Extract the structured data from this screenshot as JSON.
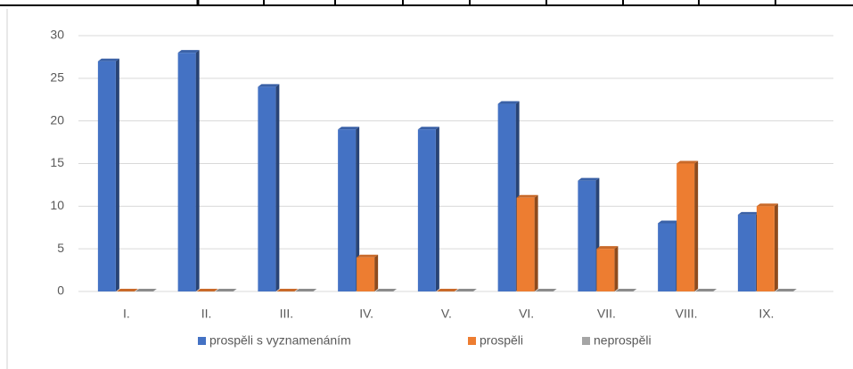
{
  "chart_data": {
    "type": "bar",
    "categories": [
      "I.",
      "II.",
      "III.",
      "IV.",
      "V.",
      "VI.",
      "VII.",
      "VIII.",
      "IX."
    ],
    "series": [
      {
        "name": "prospěli s vyznamenáním",
        "color": "#4472c4",
        "values": [
          27,
          28,
          24,
          19,
          19,
          22,
          13,
          8,
          9
        ]
      },
      {
        "name": "prospěli",
        "color": "#ed7d31",
        "values": [
          0,
          0,
          0,
          4,
          0,
          11,
          5,
          15,
          10
        ]
      },
      {
        "name": "neprospěli",
        "color": "#a5a5a5",
        "values": [
          0,
          0,
          0,
          0,
          0,
          0,
          0,
          0,
          0
        ]
      }
    ],
    "ylim": [
      0,
      30
    ],
    "yticks": [
      0,
      5,
      10,
      15,
      20,
      25,
      30
    ],
    "grid": true,
    "legend": "bottom"
  }
}
